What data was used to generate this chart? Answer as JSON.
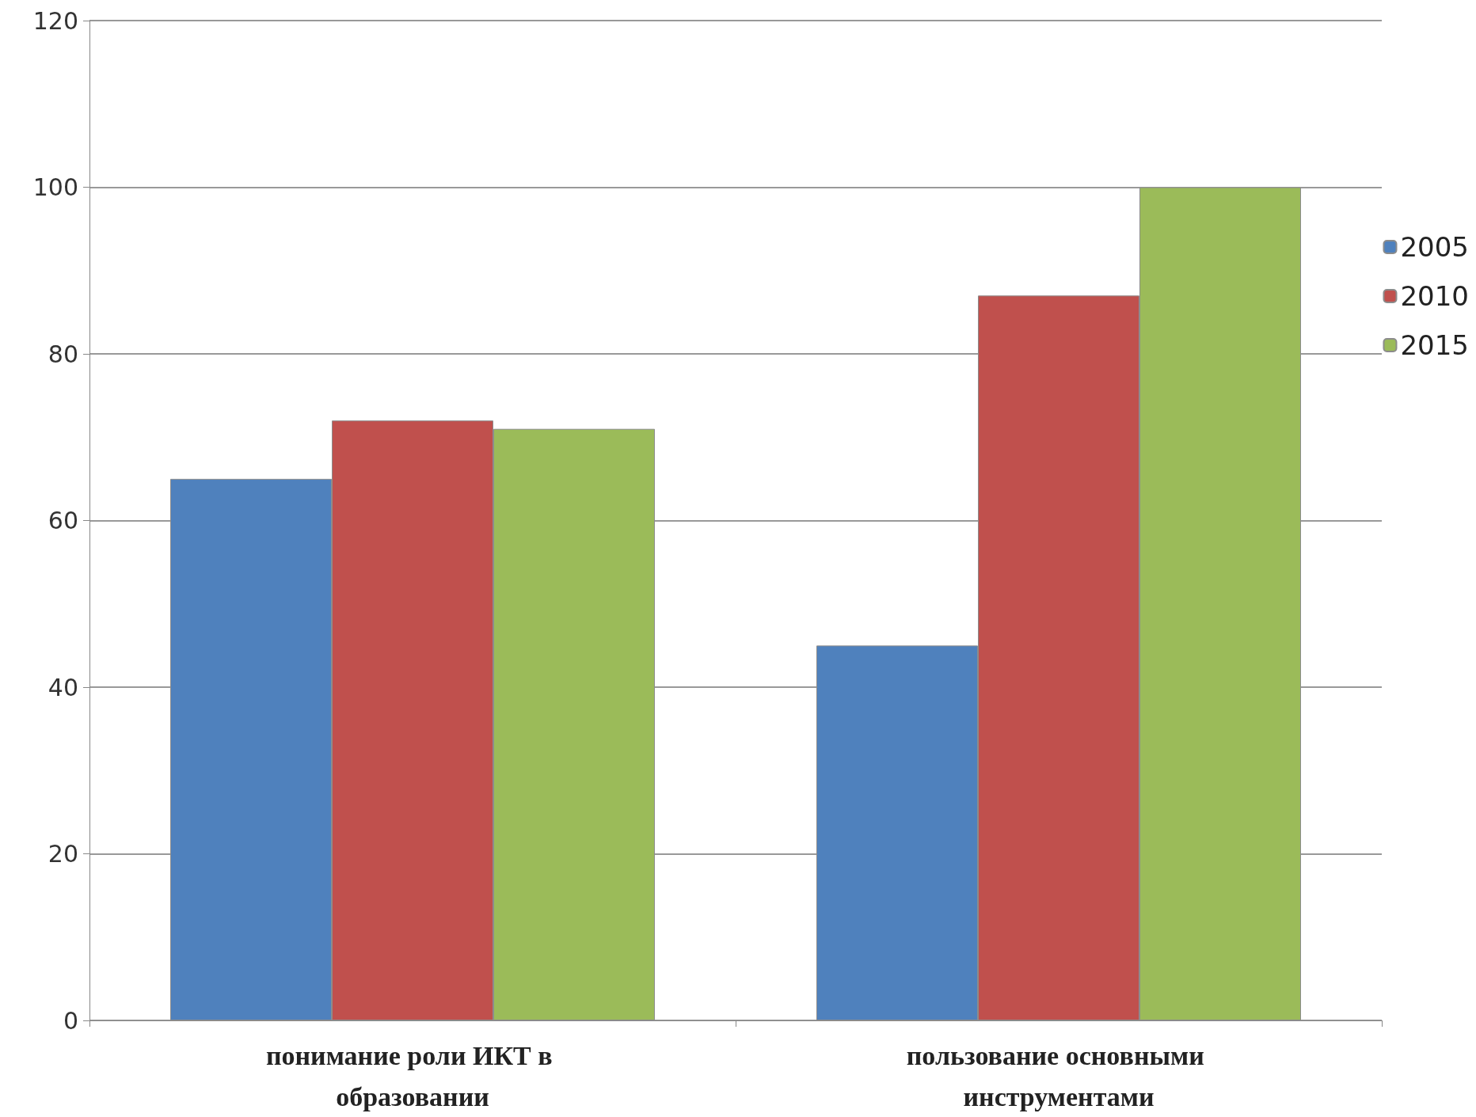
{
  "chart_data": {
    "type": "bar",
    "categories": [
      "понимание роли ИКТ в образовании",
      "пользование основными инструментами"
    ],
    "series": [
      {
        "name": "2005",
        "color": "#4f81bd",
        "values": [
          65,
          45
        ]
      },
      {
        "name": "2010",
        "color": "#c0504d",
        "values": [
          72,
          87
        ]
      },
      {
        "name": "2015",
        "color": "#9bbb59",
        "values": [
          71,
          100
        ]
      }
    ],
    "ylim": [
      0,
      120
    ],
    "yticks": [
      0,
      20,
      40,
      60,
      80,
      100,
      120
    ],
    "grid": "y",
    "legend": "right"
  }
}
